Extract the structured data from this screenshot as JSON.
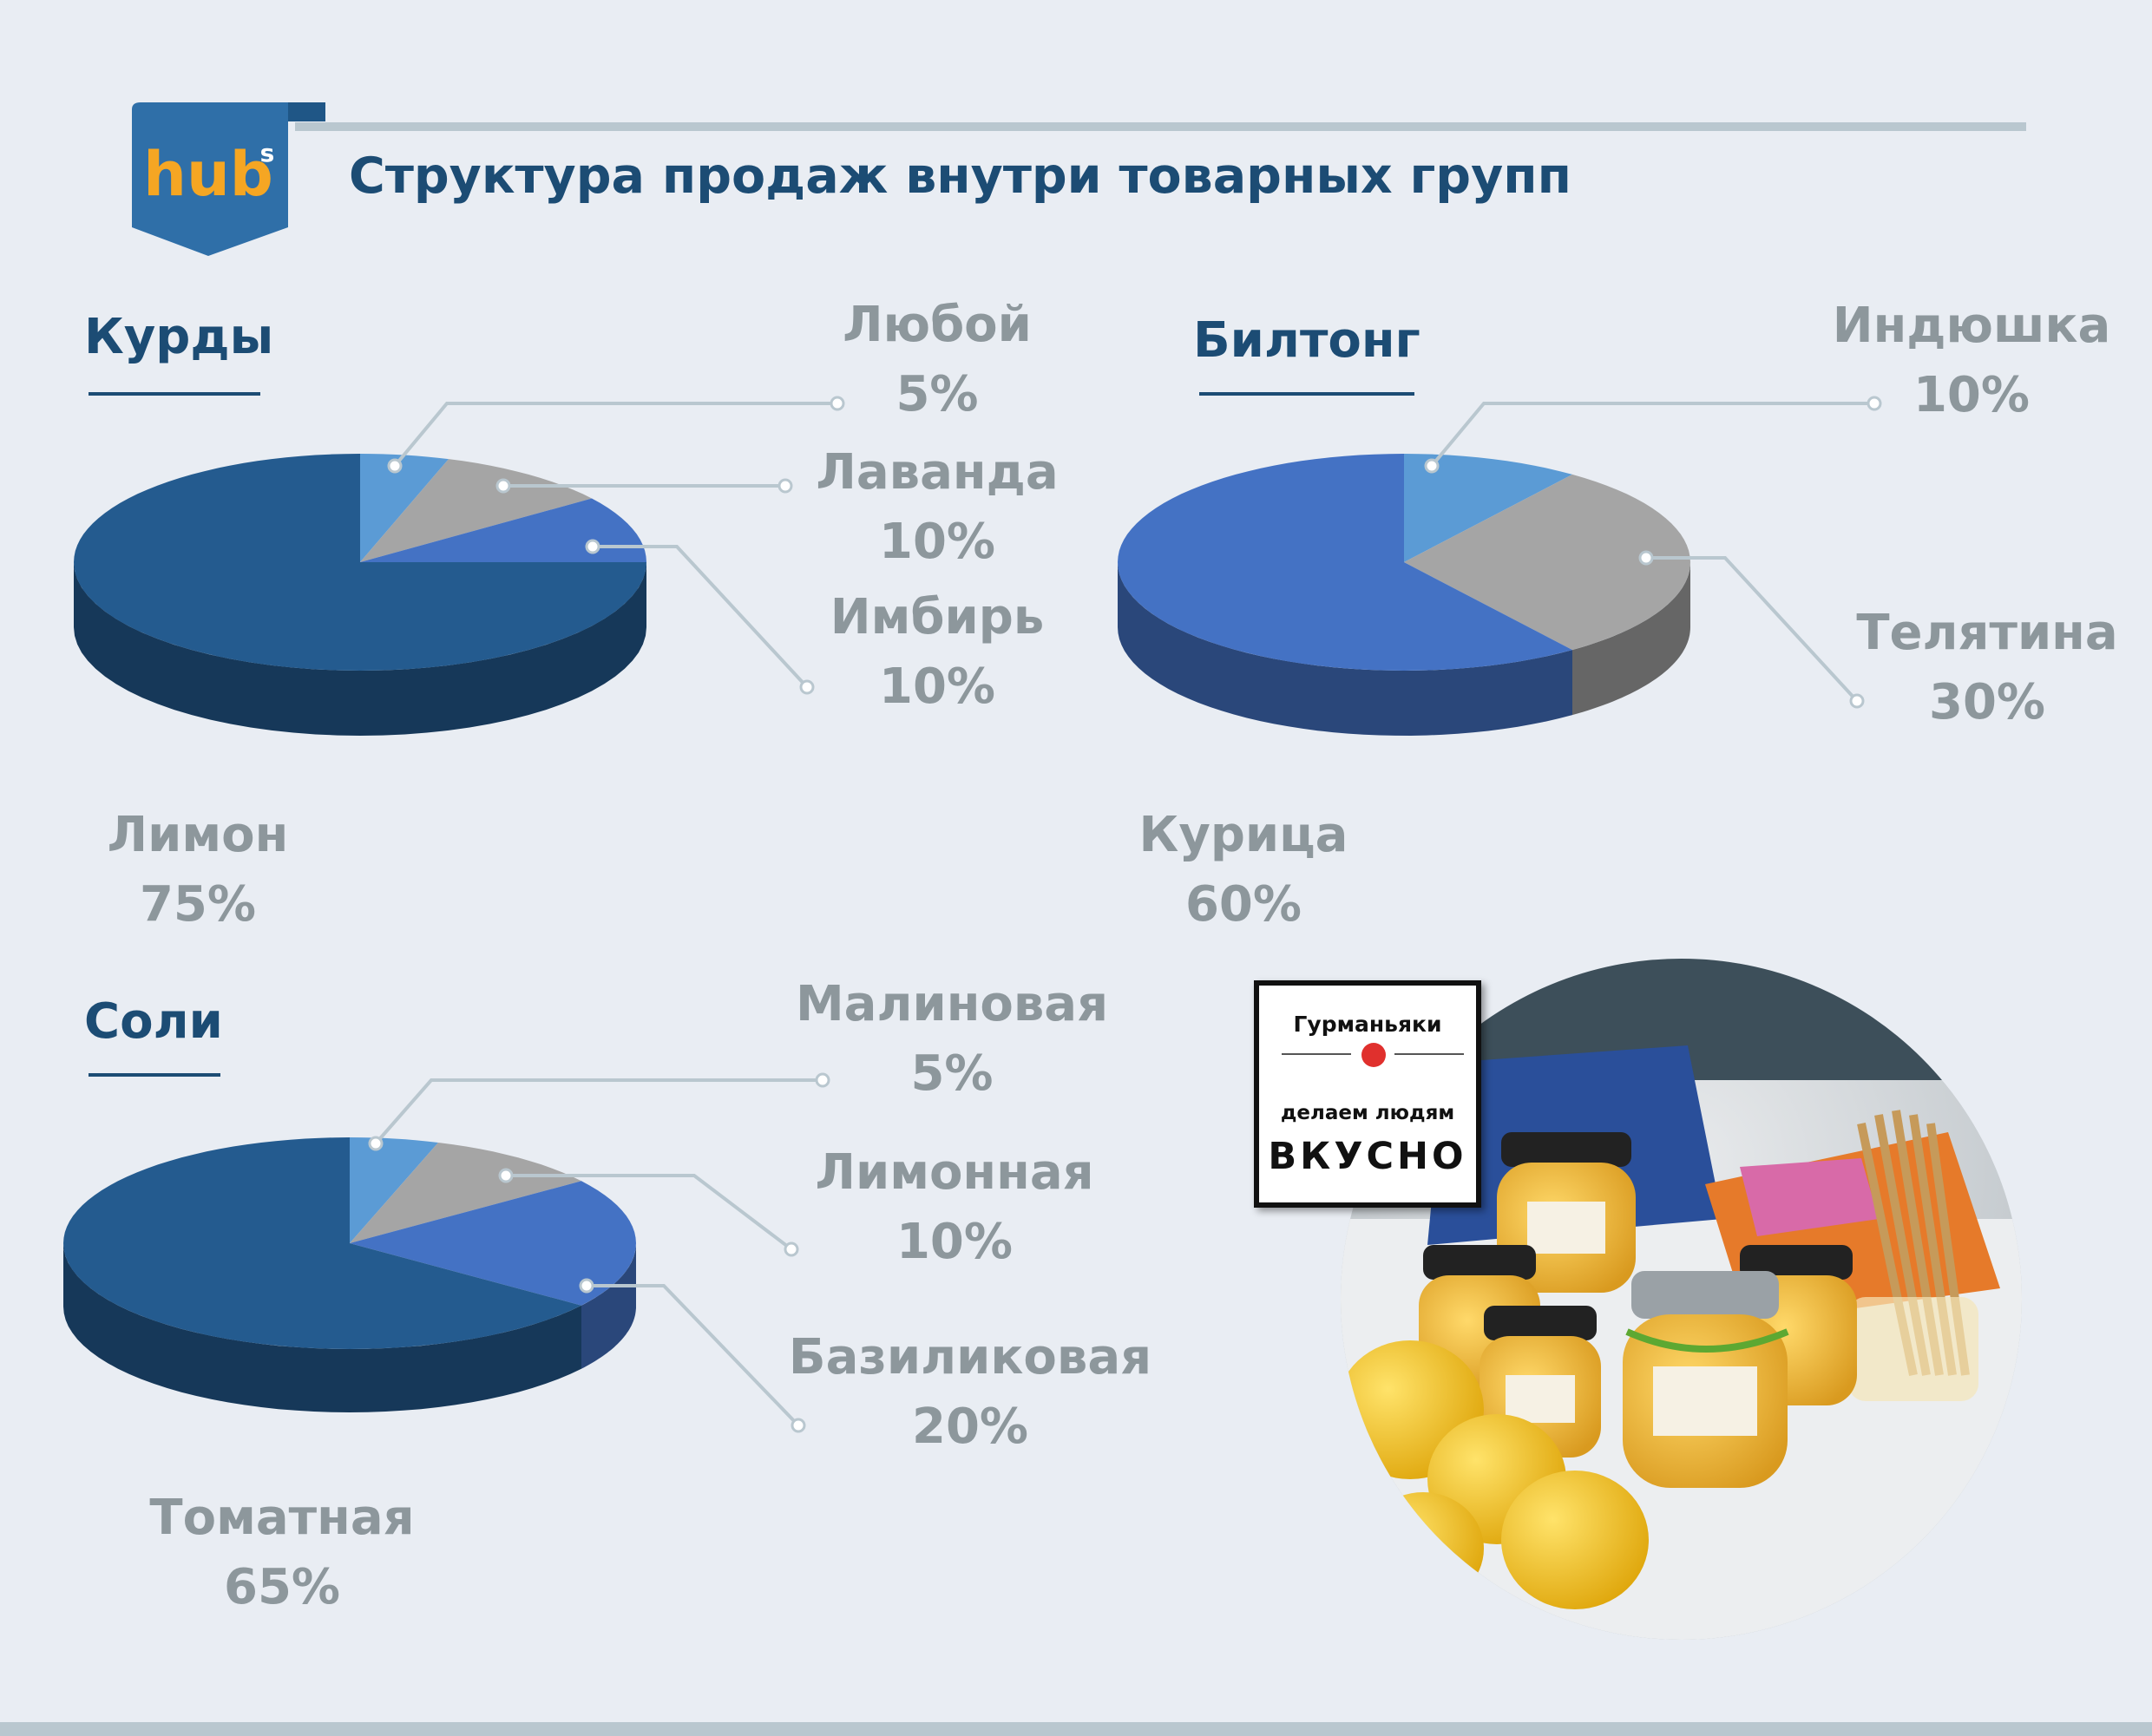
{
  "header": {
    "logo_text": "hub",
    "logo_sup": "s",
    "title": "Структура продаж внутри товарных групп"
  },
  "colors": {
    "title_blue": "#1c4c74",
    "label_gray": "#8d979c",
    "leader_line": "#b9c7cf"
  },
  "chart_data": [
    {
      "type": "pie",
      "title": "Курды",
      "slices": [
        {
          "name": "Лимон",
          "value": 75,
          "label": "75%",
          "color": "#245b8f"
        },
        {
          "name": "Любой",
          "value": 5,
          "label": "5%",
          "color": "#5b9bd5"
        },
        {
          "name": "Лаванда",
          "value": 10,
          "label": "10%",
          "color": "#a5a5a5"
        },
        {
          "name": "Имбирь",
          "value": 10,
          "label": "10%",
          "color": "#4472c4"
        }
      ]
    },
    {
      "type": "pie",
      "title": "Билтонг",
      "slices": [
        {
          "name": "Индюшка",
          "value": 10,
          "label": "10%",
          "color": "#5b9bd5"
        },
        {
          "name": "Телятина",
          "value": 30,
          "label": "30%",
          "color": "#a5a5a5"
        },
        {
          "name": "Курица",
          "value": 60,
          "label": "60%",
          "color": "#4472c4"
        }
      ]
    },
    {
      "type": "pie",
      "title": "Соли",
      "slices": [
        {
          "name": "Томатная",
          "value": 65,
          "label": "65%",
          "color": "#245b8f"
        },
        {
          "name": "Малиновая",
          "value": 5,
          "label": "5%",
          "color": "#5b9bd5"
        },
        {
          "name": "Лимонная",
          "value": 10,
          "label": "10%",
          "color": "#a5a5a5"
        },
        {
          "name": "Базиликовая",
          "value": 20,
          "label": "20%",
          "color": "#4472c4"
        }
      ]
    }
  ],
  "photo_badge": {
    "brand": "Гурманьяки",
    "tagline": "делаем людям",
    "big": "ВКУСНО"
  }
}
